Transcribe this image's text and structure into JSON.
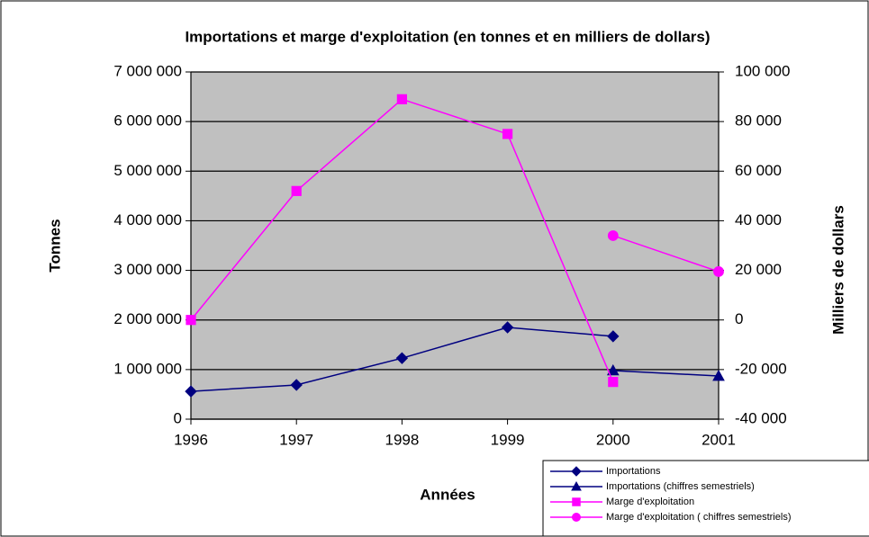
{
  "chart_data": {
    "type": "line",
    "title": "Importations et marge d'exploitation (en tonnes et en milliers de dollars)",
    "x_label": "Années",
    "y_label": "Tonnes",
    "y2_label": "Milliers de dollars",
    "x": [
      1996,
      1997,
      1998,
      1999,
      2000,
      2001
    ],
    "xlim": [
      1996,
      2001
    ],
    "xticks": [
      1996,
      1997,
      1998,
      1999,
      2000,
      2001
    ],
    "ylim": [
      0,
      7000000
    ],
    "yticks": [
      0,
      {
        "value": 1000000,
        "label": "1 000 000"
      },
      {
        "value": 2000000,
        "label": "2 000 000"
      },
      {
        "value": 3000000,
        "label": "3 000 000"
      },
      {
        "value": 4000000,
        "label": "4 000 000"
      },
      {
        "value": 5000000,
        "label": "5 000 000"
      },
      {
        "value": 6000000,
        "label": "6 000 000"
      },
      {
        "value": 7000000,
        "label": "7 000 000"
      }
    ],
    "y2lim": [
      -40000,
      100000
    ],
    "y2ticks": [
      {
        "value": -40000,
        "label": "-40 000"
      },
      {
        "value": -20000,
        "label": "-20 000"
      },
      0,
      {
        "value": 20000,
        "label": "20 000"
      },
      {
        "value": 40000,
        "label": "40 000"
      },
      {
        "value": 60000,
        "label": "60 000"
      },
      {
        "value": 80000,
        "label": "80 000"
      },
      {
        "value": 100000,
        "label": "100 000"
      }
    ],
    "grid": true,
    "series": [
      {
        "name": "Importations",
        "color": "#000080",
        "marker": "diamond",
        "values": [
          560000,
          690000,
          1230000,
          1850000,
          1670000,
          null
        ]
      },
      {
        "name": "Importations (chiffres semestriels)",
        "color": "#000080",
        "marker": "triangle",
        "values": [
          null,
          null,
          null,
          null,
          980000,
          870000
        ]
      },
      {
        "name": "Marge d'exploitation",
        "color": "#ff00ff",
        "marker": "square",
        "axis": "y2",
        "values": [
          0,
          52000,
          89000,
          75000,
          -25000,
          null
        ]
      },
      {
        "name": "Marge d'exploitation ( chiffres semestriels)",
        "color": "#ff00ff",
        "marker": "circle",
        "axis": "y2",
        "values": [
          null,
          null,
          null,
          null,
          34000,
          19500
        ]
      }
    ]
  }
}
